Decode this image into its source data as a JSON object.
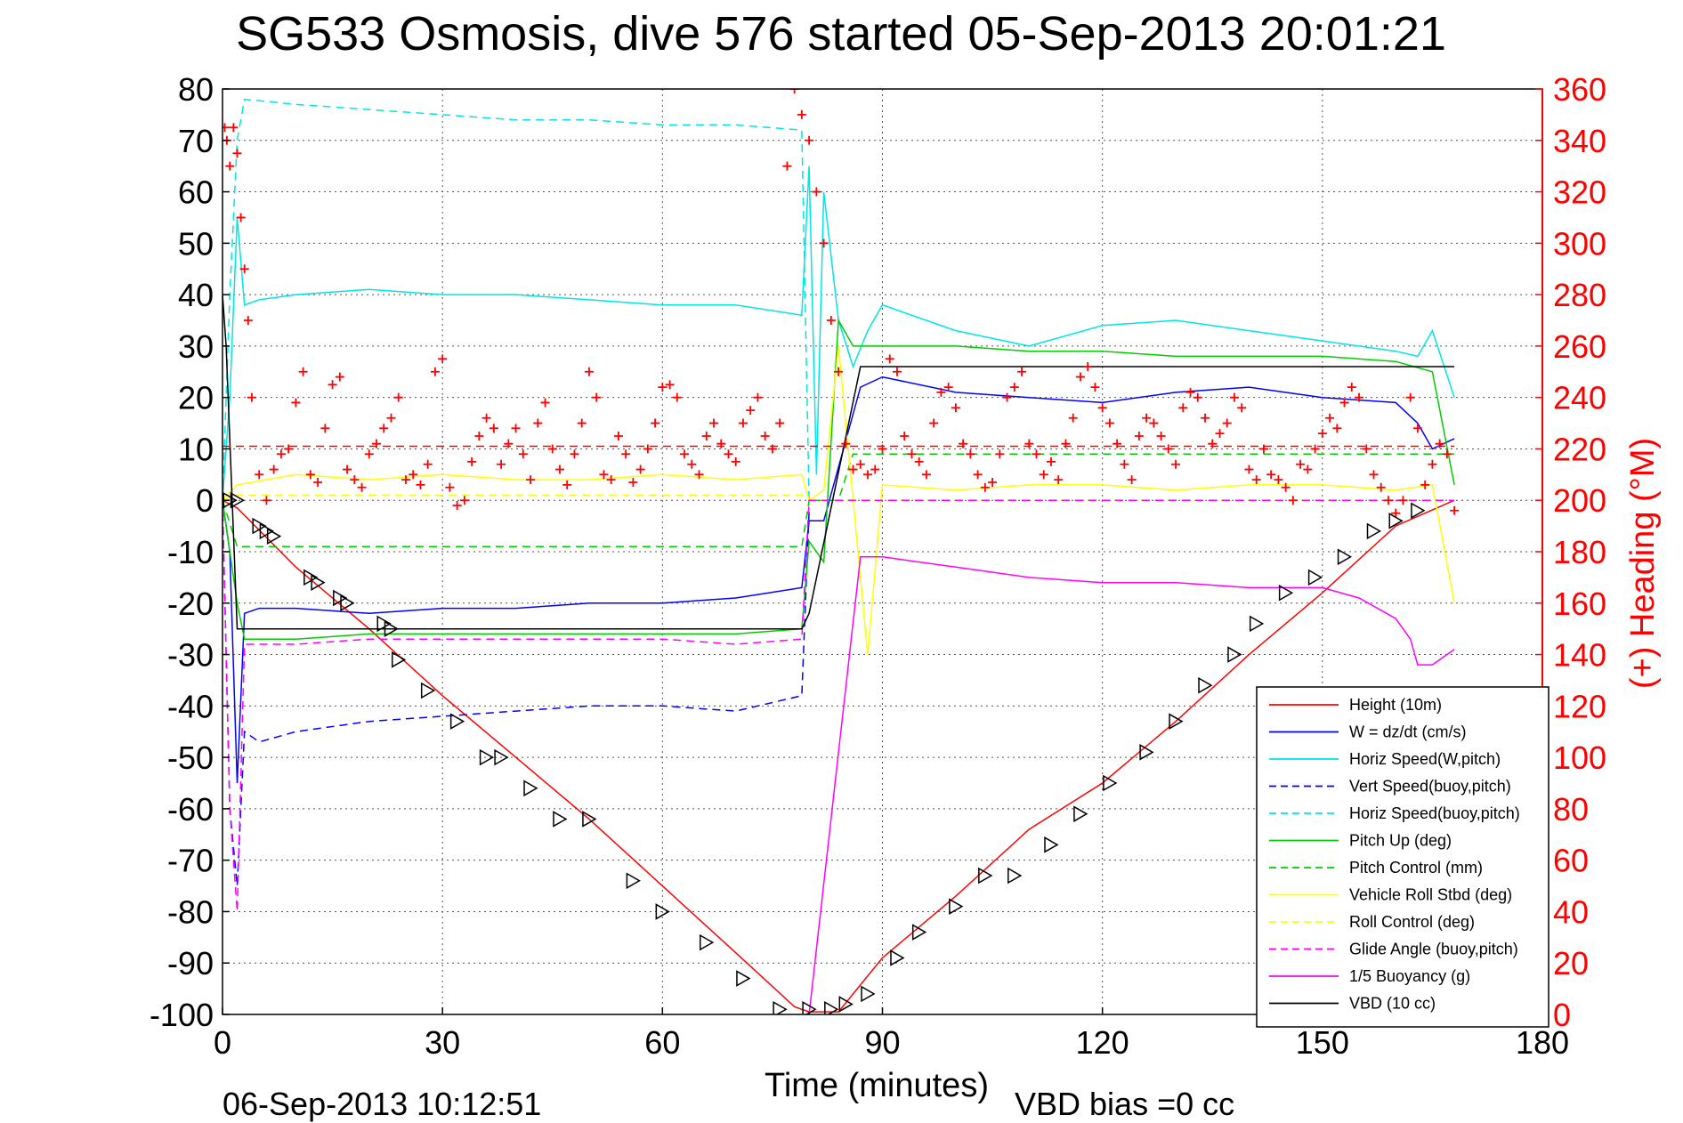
{
  "chart_data": {
    "type": "line",
    "title": "SG533 Osmosis, dive 576 started 05-Sep-2013 20:01:21",
    "xlabel": "Time (minutes)",
    "ylabel": "",
    "y2label": "(+) Heading (°M)",
    "xlim": [
      0,
      180
    ],
    "ylim": [
      -100,
      80
    ],
    "y2lim": [
      0,
      360
    ],
    "x_ticks": [
      "0",
      "30",
      "60",
      "90",
      "120",
      "150",
      "180"
    ],
    "y_ticks": [
      "80",
      "70",
      "60",
      "50",
      "40",
      "30",
      "20",
      "10",
      "0",
      "-10",
      "-20",
      "-30",
      "-40",
      "-50",
      "-60",
      "-70",
      "-80",
      "-90",
      "-100"
    ],
    "y2_ticks": [
      "360",
      "340",
      "320",
      "300",
      "280",
      "260",
      "240",
      "220",
      "200",
      "180",
      "160",
      "140",
      "120",
      "100",
      "80",
      "60",
      "40",
      "20",
      "0"
    ],
    "grid": true,
    "legend_position": "bottom-right",
    "footer_date": "06-Sep-2013 10:12:51",
    "footer_note": "VBD bias =0 cc",
    "series": [
      {
        "name": "Height (10m)",
        "color": "#ff0000",
        "style": "solid",
        "x": [
          0,
          2,
          10,
          20,
          30,
          40,
          50,
          60,
          70,
          78,
          80,
          84,
          90,
          100,
          110,
          120,
          130,
          140,
          150,
          160,
          168
        ],
        "y": [
          0,
          -1.5,
          -13,
          -25,
          -38,
          -50,
          -62,
          -75,
          -88,
          -98.5,
          -99.5,
          -99.5,
          -89,
          -77,
          -64,
          -55,
          -43,
          -30,
          -18,
          -5,
          0
        ]
      },
      {
        "name": "W = dz/dt (cm/s)",
        "color": "#0000ff",
        "style": "solid",
        "x": [
          0,
          1,
          2,
          3,
          5,
          10,
          20,
          30,
          40,
          50,
          60,
          70,
          79,
          80,
          82,
          87,
          90,
          100,
          110,
          120,
          130,
          140,
          150,
          160,
          163,
          165,
          168
        ],
        "y": [
          0,
          -10,
          -55,
          -22,
          -21,
          -21,
          -22,
          -21,
          -21,
          -20,
          -20,
          -19,
          -17,
          -4,
          -4,
          22,
          24,
          21,
          20,
          19,
          21,
          22,
          20,
          19,
          15,
          10,
          12
        ]
      },
      {
        "name": "Horiz Speed(W,pitch)",
        "color": "#00e5e5",
        "style": "solid",
        "x": [
          0,
          1,
          2,
          3,
          5,
          10,
          20,
          30,
          40,
          50,
          60,
          70,
          79,
          80,
          81,
          82,
          84,
          86,
          88,
          90,
          100,
          110,
          120,
          130,
          140,
          150,
          160,
          163,
          165,
          168
        ],
        "y": [
          0,
          20,
          55,
          38,
          39,
          40,
          41,
          40,
          40,
          39,
          38,
          38,
          36,
          65,
          5,
          60,
          35,
          26,
          33,
          38,
          33,
          30,
          34,
          35,
          33,
          31,
          29,
          28,
          33,
          20
        ]
      },
      {
        "name": "Vert Speed(buoy,pitch)",
        "color": "#0000ff",
        "style": "dashed",
        "x": [
          0,
          1,
          2,
          3,
          5,
          10,
          20,
          30,
          40,
          50,
          60,
          70,
          79,
          80
        ],
        "y": [
          0,
          -60,
          -75,
          -45,
          -47,
          -45,
          -43,
          -42,
          -41,
          -40,
          -40,
          -41,
          -38,
          -2
        ]
      },
      {
        "name": "Horiz Speed(buoy,pitch)",
        "color": "#00e5e5",
        "style": "dashed",
        "x": [
          0,
          1,
          2,
          3,
          10,
          20,
          30,
          40,
          50,
          60,
          70,
          79,
          80
        ],
        "y": [
          0,
          40,
          70,
          78,
          77,
          76,
          75,
          74,
          74,
          73,
          73,
          72,
          0
        ]
      },
      {
        "name": "Pitch Up (deg)",
        "color": "#00cc00",
        "style": "solid",
        "x": [
          0,
          2,
          3,
          10,
          20,
          30,
          40,
          50,
          60,
          70,
          79,
          80,
          82,
          84,
          86,
          90,
          100,
          110,
          120,
          130,
          140,
          150,
          160,
          165,
          168
        ],
        "y": [
          0,
          -20,
          -27,
          -27,
          -26,
          -26,
          -26,
          -26,
          -26,
          -26,
          -25,
          -8,
          -12,
          35,
          30,
          30,
          30,
          29,
          29,
          28,
          28,
          28,
          27,
          25,
          3
        ]
      },
      {
        "name": "Pitch Control (mm)",
        "color": "#00cc00",
        "style": "dashed",
        "x": [
          0,
          2,
          10,
          20,
          30,
          40,
          50,
          60,
          70,
          79,
          80,
          84,
          86,
          90,
          100,
          110,
          120,
          130,
          140,
          150,
          160,
          168
        ],
        "y": [
          0,
          -9,
          -9,
          -9,
          -9,
          -9,
          -9,
          -9,
          -9,
          -9,
          0,
          0,
          9,
          9,
          9,
          9,
          9,
          9,
          9,
          9,
          9,
          9
        ]
      },
      {
        "name": "Vehicle Roll Stbd (deg)",
        "color": "#ffff00",
        "style": "solid",
        "x": [
          0,
          2,
          10,
          20,
          30,
          40,
          50,
          60,
          70,
          79,
          80,
          82,
          84,
          88,
          90,
          100,
          110,
          120,
          130,
          140,
          150,
          160,
          165,
          168
        ],
        "y": [
          0,
          3,
          5,
          4,
          5,
          4,
          4,
          5,
          4,
          5,
          0,
          2,
          30,
          -30,
          3,
          2,
          3,
          3,
          2,
          3,
          3,
          2,
          3,
          -20
        ]
      },
      {
        "name": "Roll Control (deg)",
        "color": "#ffff00",
        "style": "dashed",
        "x": [
          0,
          2,
          10,
          30,
          60,
          79,
          80,
          84,
          90,
          120,
          150,
          160,
          168
        ],
        "y": [
          0,
          1,
          1,
          1,
          1,
          1,
          0,
          0,
          0,
          0,
          0,
          0,
          0
        ]
      },
      {
        "name": "Glide Angle (buoy,pitch)",
        "color": "#ff00ff",
        "style": "dashed",
        "x": [
          0,
          1,
          2,
          3,
          10,
          20,
          30,
          40,
          50,
          60,
          70,
          79,
          80,
          84,
          90,
          120,
          150,
          168
        ],
        "y": [
          0,
          -60,
          -80,
          -28,
          -28,
          -27,
          -27,
          -27,
          -27,
          -27,
          -28,
          -27,
          0,
          0,
          0,
          0,
          0,
          0
        ]
      },
      {
        "name": "1/5 Buoyancy (g)",
        "color": "#ff00ff",
        "style": "solid",
        "x": [
          80,
          87,
          90,
          100,
          110,
          120,
          130,
          140,
          150,
          155,
          160,
          162,
          163,
          165,
          168
        ],
        "y": [
          -100,
          -11,
          -11,
          -13,
          -15,
          -16,
          -16,
          -17,
          -17,
          -19,
          -23,
          -27,
          -32,
          -32,
          -29
        ]
      },
      {
        "name": "VBD (10 cc)",
        "color": "#000000",
        "style": "solid",
        "x": [
          0,
          0.5,
          2,
          79,
          80,
          87,
          168
        ],
        "y": [
          40,
          30,
          -25,
          -25,
          -22,
          26,
          26
        ]
      }
    ],
    "heading_marker": {
      "name": "(+) Heading",
      "color": "#ff0000",
      "axis": "right",
      "x": [
        0.3,
        0.6,
        1,
        1.5,
        2,
        2.5,
        3,
        3.5,
        4,
        5,
        6,
        7,
        8,
        9,
        10,
        11,
        12,
        13,
        14,
        15,
        16,
        17,
        18,
        19,
        20,
        21,
        22,
        23,
        24,
        25,
        26,
        27,
        28,
        29,
        30,
        31,
        32,
        33,
        34,
        35,
        36,
        37,
        38,
        39,
        40,
        41,
        42,
        43,
        44,
        45,
        46,
        47,
        48,
        49,
        50,
        51,
        52,
        53,
        54,
        55,
        56,
        57,
        58,
        59,
        60,
        61,
        62,
        63,
        64,
        65,
        66,
        67,
        68,
        69,
        70,
        71,
        72,
        73,
        74,
        75,
        76,
        77,
        78,
        79,
        80,
        81,
        82,
        83,
        84,
        85,
        86,
        87,
        88,
        89,
        90,
        91,
        92,
        93,
        94,
        95,
        96,
        97,
        98,
        99,
        100,
        101,
        102,
        103,
        104,
        105,
        106,
        107,
        108,
        109,
        110,
        111,
        112,
        113,
        114,
        115,
        116,
        117,
        118,
        119,
        120,
        121,
        122,
        123,
        124,
        125,
        126,
        127,
        128,
        129,
        130,
        131,
        132,
        133,
        134,
        135,
        136,
        137,
        138,
        139,
        140,
        141,
        142,
        143,
        144,
        145,
        146,
        147,
        148,
        149,
        150,
        151,
        152,
        153,
        154,
        155,
        156,
        157,
        158,
        159,
        160,
        161,
        162,
        163,
        164,
        165,
        166,
        167,
        168
      ],
      "y": [
        345,
        340,
        330,
        345,
        335,
        310,
        290,
        270,
        240,
        210,
        200,
        212,
        218,
        220,
        238,
        250,
        210,
        207,
        228,
        245,
        248,
        212,
        208,
        205,
        218,
        222,
        228,
        232,
        240,
        208,
        210,
        206,
        214,
        250,
        255,
        205,
        198,
        200,
        215,
        225,
        232,
        228,
        214,
        222,
        228,
        218,
        208,
        230,
        238,
        220,
        212,
        206,
        218,
        230,
        250,
        240,
        210,
        208,
        225,
        218,
        207,
        212,
        220,
        230,
        244,
        245,
        240,
        218,
        214,
        210,
        225,
        230,
        222,
        218,
        215,
        230,
        235,
        240,
        225,
        220,
        230,
        330,
        360,
        350,
        340,
        320,
        300,
        270,
        250,
        222,
        212,
        214,
        210,
        212,
        220,
        255,
        250,
        225,
        218,
        215,
        210,
        230,
        242,
        244,
        236,
        222,
        218,
        210,
        205,
        207,
        218,
        240,
        244,
        250,
        222,
        218,
        210,
        215,
        208,
        222,
        232,
        248,
        252,
        244,
        236,
        230,
        222,
        214,
        208,
        225,
        232,
        230,
        225,
        220,
        214,
        236,
        242,
        240,
        232,
        222,
        226,
        230,
        240,
        236,
        212,
        208,
        220,
        210,
        208,
        205,
        200,
        214,
        212,
        220,
        226,
        232,
        228,
        238,
        244,
        240,
        220,
        210,
        205,
        200,
        195,
        200,
        240,
        228,
        206,
        214,
        222,
        218,
        196
      ]
    },
    "heading_reference": {
      "color": "#ff0000",
      "style": "dashed",
      "axis": "right",
      "y": 221
    },
    "target_markers": {
      "symbol": "triangle",
      "color": "#000000",
      "x": [
        1,
        2,
        5,
        6,
        7,
        12,
        13,
        16,
        17,
        22,
        23,
        24,
        28,
        32,
        36,
        38,
        42,
        46,
        50,
        56,
        60,
        66,
        71,
        76,
        80,
        83,
        85,
        88,
        92,
        95,
        100,
        104,
        108,
        113,
        117,
        121,
        126,
        130,
        134,
        138,
        141,
        145,
        149,
        153,
        157,
        160,
        163
      ],
      "y": [
        0,
        0,
        -5,
        -6,
        -7,
        -15,
        -16,
        -19,
        -20,
        -24,
        -25,
        -31,
        -37,
        -43,
        -50,
        -50,
        -56,
        -62,
        -62,
        -74,
        -80,
        -86,
        -93,
        -99,
        -99,
        -99,
        -98,
        -96,
        -89,
        -84,
        -79,
        -73,
        -73,
        -67,
        -61,
        -55,
        -49,
        -43,
        -36,
        -30,
        -24,
        -18,
        -15,
        -11,
        -6,
        -4,
        -2
      ]
    }
  },
  "legend": {
    "entries": [
      {
        "label": "Height (10m)",
        "color": "#ff0000",
        "style": "solid"
      },
      {
        "label": "W = dz/dt (cm/s)",
        "color": "#0000ff",
        "style": "solid"
      },
      {
        "label": "Horiz Speed(W,pitch)",
        "color": "#00e5e5",
        "style": "solid"
      },
      {
        "label": "Vert Speed(buoy,pitch)",
        "color": "#0000ff",
        "style": "dashed"
      },
      {
        "label": "Horiz Speed(buoy,pitch)",
        "color": "#00e5e5",
        "style": "dashed"
      },
      {
        "label": "Pitch Up (deg)",
        "color": "#00cc00",
        "style": "solid"
      },
      {
        "label": "Pitch Control (mm)",
        "color": "#00cc00",
        "style": "dashed"
      },
      {
        "label": "Vehicle Roll Stbd (deg)",
        "color": "#ffff00",
        "style": "solid"
      },
      {
        "label": "Roll Control (deg)",
        "color": "#ffff00",
        "style": "dashed"
      },
      {
        "label": "Glide Angle (buoy,pitch)",
        "color": "#ff00ff",
        "style": "dashed"
      },
      {
        "label": "1/5 Buoyancy (g)",
        "color": "#ff00ff",
        "style": "solid"
      },
      {
        "label": "VBD (10 cc)",
        "color": "#000000",
        "style": "solid"
      }
    ]
  },
  "colors": {
    "left_axis": "#000000",
    "right_axis": "#ff0000",
    "grid": "#555555"
  }
}
